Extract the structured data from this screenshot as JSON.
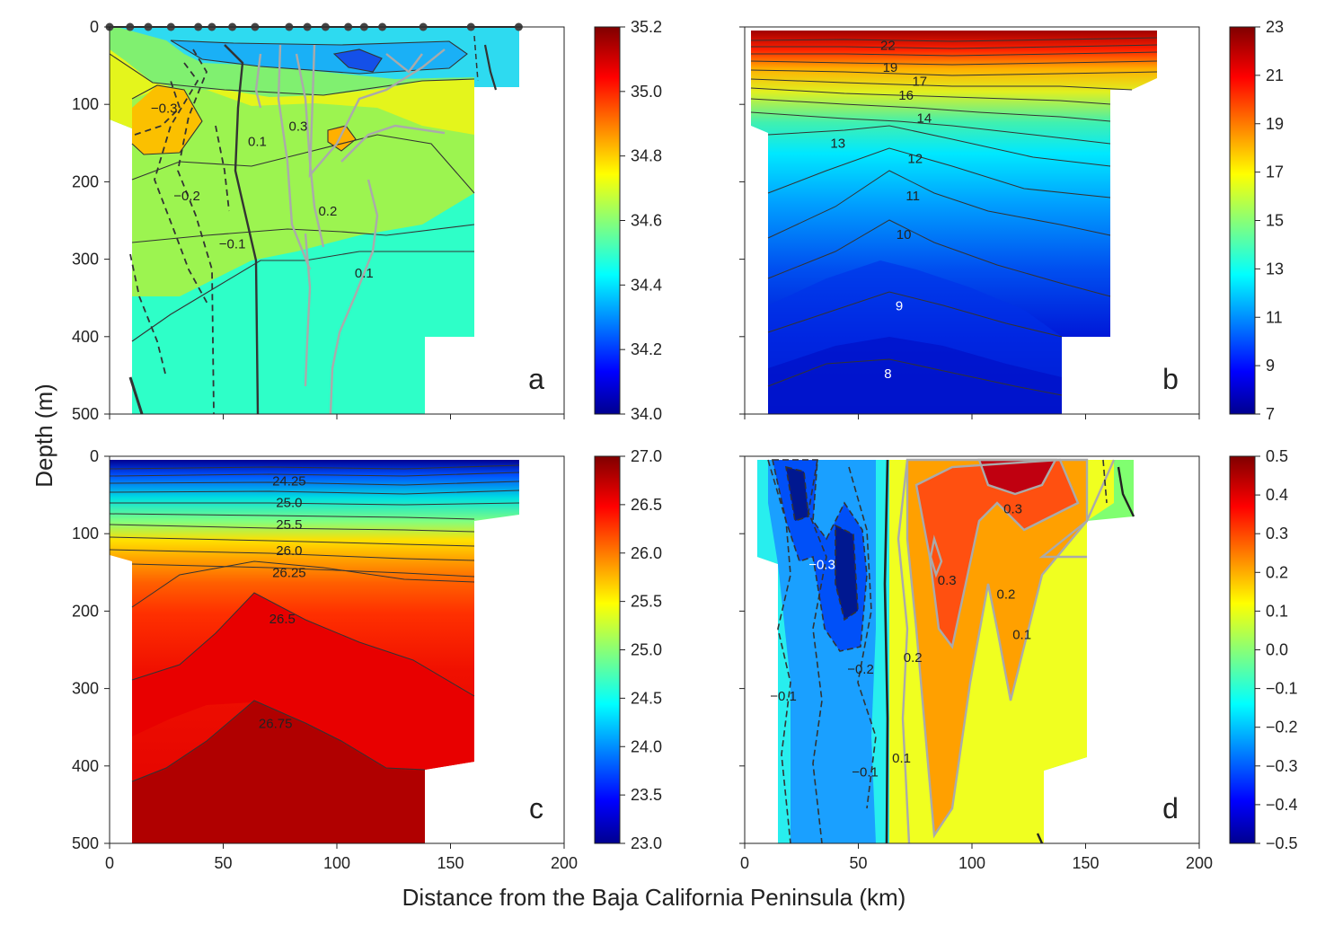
{
  "figure": {
    "ylabel": "Depth (m)",
    "xlabel": "Distance from the Baja  California Peninsula (km)"
  },
  "chart_data": [
    {
      "type": "heatmap",
      "panel": "a",
      "xlim": [
        0,
        200
      ],
      "ylim": [
        500,
        0
      ],
      "x_ticks": [
        0,
        50,
        100,
        150,
        200
      ],
      "y_ticks": [
        0,
        100,
        200,
        300,
        400,
        500
      ],
      "colorbar": {
        "min": 34.0,
        "max": 35.2,
        "ticks": [
          "35.2",
          "35.0",
          "34.8",
          "34.6",
          "34.4",
          "34.2",
          "34.0"
        ]
      },
      "station_x": [
        0,
        9,
        17,
        27,
        39,
        45,
        54,
        64,
        79,
        87,
        95,
        105,
        112,
        120,
        138,
        159,
        180
      ],
      "contour_labels": [
        {
          "text": "−0.3",
          "x": 24,
          "y": 105
        },
        {
          "text": "0.1",
          "x": 65,
          "y": 148
        },
        {
          "text": "0.3",
          "x": 83,
          "y": 128
        },
        {
          "text": "−0.2",
          "x": 34,
          "y": 218
        },
        {
          "text": "0.2",
          "x": 96,
          "y": 238
        },
        {
          "text": "−0.1",
          "x": 54,
          "y": 280
        },
        {
          "text": "0.1",
          "x": 112,
          "y": 318
        }
      ]
    },
    {
      "type": "heatmap",
      "panel": "b",
      "xlim": [
        0,
        200
      ],
      "ylim": [
        500,
        0
      ],
      "x_ticks": [
        0,
        50,
        100,
        150,
        200
      ],
      "y_ticks": [
        0,
        100,
        200,
        300,
        400,
        500
      ],
      "colorbar": {
        "min": 7,
        "max": 23,
        "ticks": [
          "23",
          "21",
          "19",
          "17",
          "15",
          "13",
          "11",
          "9",
          "7"
        ]
      },
      "contour_labels": [
        {
          "text": "22",
          "x": 63,
          "y": 24
        },
        {
          "text": "19",
          "x": 64,
          "y": 52
        },
        {
          "text": "17",
          "x": 77,
          "y": 70
        },
        {
          "text": "16",
          "x": 71,
          "y": 88
        },
        {
          "text": "14",
          "x": 79,
          "y": 118
        },
        {
          "text": "13",
          "x": 41,
          "y": 150
        },
        {
          "text": "12",
          "x": 75,
          "y": 170
        },
        {
          "text": "11",
          "x": 74,
          "y": 218
        },
        {
          "text": "10",
          "x": 70,
          "y": 268
        },
        {
          "text": "9",
          "x": 68,
          "y": 360
        },
        {
          "text": "8",
          "x": 63,
          "y": 448
        }
      ]
    },
    {
      "type": "heatmap",
      "panel": "c",
      "xlim": [
        0,
        200
      ],
      "ylim": [
        500,
        0
      ],
      "x_ticks": [
        0,
        50,
        100,
        150,
        200
      ],
      "y_ticks": [
        0,
        100,
        200,
        300,
        400,
        500
      ],
      "colorbar": {
        "min": 22.8,
        "max": 27.0,
        "ticks": [
          "27.0",
          "26.5",
          "26.0",
          "25.5",
          "25.0",
          "24.5",
          "24.0",
          "23.5",
          "23.0"
        ]
      },
      "contour_labels": [
        {
          "text": "24.25",
          "x": 79,
          "y": 32
        },
        {
          "text": "25.0",
          "x": 79,
          "y": 60
        },
        {
          "text": "25.5",
          "x": 79,
          "y": 88
        },
        {
          "text": "26.0",
          "x": 79,
          "y": 122
        },
        {
          "text": "26.25",
          "x": 79,
          "y": 150
        },
        {
          "text": "26.5",
          "x": 76,
          "y": 210
        },
        {
          "text": "26.75",
          "x": 73,
          "y": 345
        }
      ]
    },
    {
      "type": "heatmap",
      "panel": "d",
      "xlim": [
        0,
        200
      ],
      "ylim": [
        500,
        0
      ],
      "x_ticks": [
        0,
        50,
        100,
        150,
        200
      ],
      "y_ticks": [
        0,
        100,
        200,
        300,
        400,
        500
      ],
      "colorbar": {
        "min": -0.5,
        "max": 0.5,
        "ticks": [
          "0.5",
          "0.4",
          "0.3",
          "0.2",
          "0.1",
          "0.0",
          "−0.1",
          "−0.2",
          "−0.3",
          "−0.4",
          "−0.5"
        ]
      },
      "contour_labels": [
        {
          "text": "−0.3",
          "x": 34,
          "y": 140
        },
        {
          "text": "0.3",
          "x": 118,
          "y": 68
        },
        {
          "text": "0.3",
          "x": 89,
          "y": 160
        },
        {
          "text": "0.2",
          "x": 115,
          "y": 178
        },
        {
          "text": "0.1",
          "x": 122,
          "y": 230
        },
        {
          "text": "0.2",
          "x": 74,
          "y": 260
        },
        {
          "text": "−0.2",
          "x": 51,
          "y": 275
        },
        {
          "text": "−0.1",
          "x": 17,
          "y": 310
        },
        {
          "text": "0.1",
          "x": 69,
          "y": 390
        },
        {
          "text": "−0.1",
          "x": 53,
          "y": 408
        }
      ]
    }
  ]
}
